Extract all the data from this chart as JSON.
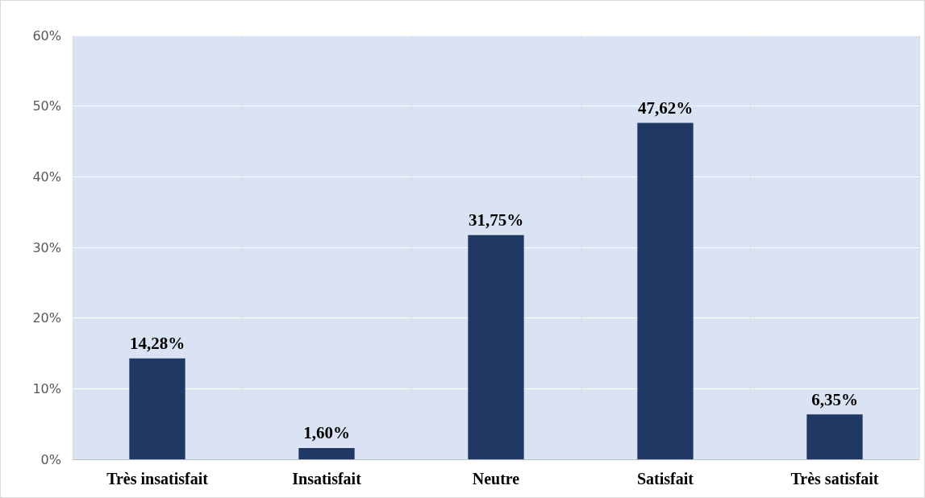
{
  "chart_data": {
    "type": "bar",
    "categories": [
      "Très insatisfait",
      "Insatisfait",
      "Neutre",
      "Satisfait",
      "Très satisfait"
    ],
    "values": [
      14.28,
      1.6,
      31.75,
      47.62,
      6.35
    ],
    "color": "#203864",
    "value_labels": [
      "14,28%",
      "1,60%",
      "31,75%",
      "47,62%",
      "6,35%"
    ],
    "ylim": [
      0,
      60
    ],
    "yticks": [
      {
        "value": 0,
        "label": "0%"
      },
      {
        "value": 10,
        "label": "10%"
      },
      {
        "value": 20,
        "label": "20%"
      },
      {
        "value": 30,
        "label": "30%"
      },
      {
        "value": 40,
        "label": "40%"
      },
      {
        "value": 50,
        "label": "50%"
      },
      {
        "value": 60,
        "label": "60%"
      }
    ],
    "grid": true
  }
}
